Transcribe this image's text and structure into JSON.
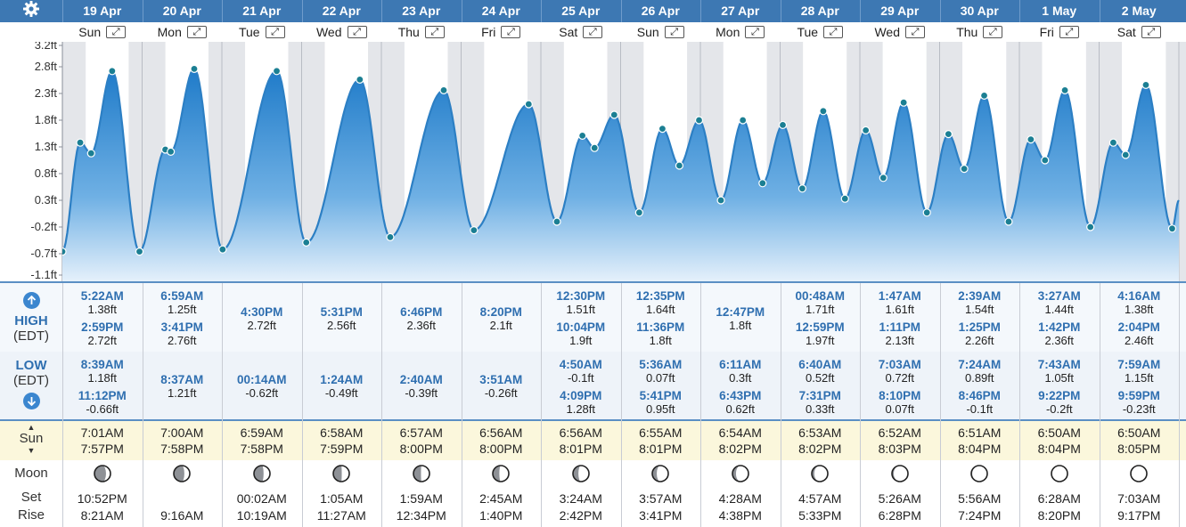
{
  "settings_icon": "gear-icon",
  "colors": {
    "header": "#3d78b3",
    "tide_line": "#2c7fc4",
    "tide_fill_top": "#2a84cf",
    "label_blue": "#2f6fb0"
  },
  "days": [
    {
      "date": "19 Apr",
      "weekday": "Sun",
      "high": [
        {
          "time": "5:22AM",
          "ht": "1.38ft"
        },
        {
          "time": "2:59PM",
          "ht": "2.72ft"
        }
      ],
      "low": [
        {
          "time": "8:39AM",
          "ht": "1.18ft"
        },
        {
          "time": "11:12PM",
          "ht": "-0.66ft"
        }
      ],
      "sunrise": "7:01AM",
      "sunset": "7:57PM",
      "moonset": "10:52PM",
      "moonrise": "8:21AM"
    },
    {
      "date": "20 Apr",
      "weekday": "Mon",
      "high": [
        {
          "time": "6:59AM",
          "ht": "1.25ft"
        },
        {
          "time": "3:41PM",
          "ht": "2.76ft"
        }
      ],
      "low": [
        {
          "time": "8:37AM",
          "ht": "1.21ft"
        }
      ],
      "sunrise": "7:00AM",
      "sunset": "7:58PM",
      "moonset": "",
      "moonrise": "9:16AM"
    },
    {
      "date": "21 Apr",
      "weekday": "Tue",
      "high": [
        {
          "time": "4:30PM",
          "ht": "2.72ft"
        }
      ],
      "low": [
        {
          "time": "00:14AM",
          "ht": "-0.62ft"
        }
      ],
      "sunrise": "6:59AM",
      "sunset": "7:58PM",
      "moonset": "00:02AM",
      "moonrise": "10:19AM"
    },
    {
      "date": "22 Apr",
      "weekday": "Wed",
      "high": [
        {
          "time": "5:31PM",
          "ht": "2.56ft"
        }
      ],
      "low": [
        {
          "time": "1:24AM",
          "ht": "-0.49ft"
        }
      ],
      "sunrise": "6:58AM",
      "sunset": "7:59PM",
      "moonset": "1:05AM",
      "moonrise": "11:27AM"
    },
    {
      "date": "23 Apr",
      "weekday": "Thu",
      "high": [
        {
          "time": "6:46PM",
          "ht": "2.36ft"
        }
      ],
      "low": [
        {
          "time": "2:40AM",
          "ht": "-0.39ft"
        }
      ],
      "sunrise": "6:57AM",
      "sunset": "8:00PM",
      "moonset": "1:59AM",
      "moonrise": "12:34PM"
    },
    {
      "date": "24 Apr",
      "weekday": "Fri",
      "high": [
        {
          "time": "8:20PM",
          "ht": "2.1ft"
        }
      ],
      "low": [
        {
          "time": "3:51AM",
          "ht": "-0.26ft"
        }
      ],
      "sunrise": "6:56AM",
      "sunset": "8:00PM",
      "moonset": "2:45AM",
      "moonrise": "1:40PM"
    },
    {
      "date": "25 Apr",
      "weekday": "Sat",
      "high": [
        {
          "time": "12:30PM",
          "ht": "1.51ft"
        },
        {
          "time": "10:04PM",
          "ht": "1.9ft"
        }
      ],
      "low": [
        {
          "time": "4:50AM",
          "ht": "-0.1ft"
        },
        {
          "time": "4:09PM",
          "ht": "1.28ft"
        }
      ],
      "sunrise": "6:56AM",
      "sunset": "8:01PM",
      "moonset": "3:24AM",
      "moonrise": "2:42PM"
    },
    {
      "date": "26 Apr",
      "weekday": "Sun",
      "high": [
        {
          "time": "12:35PM",
          "ht": "1.64ft"
        },
        {
          "time": "11:36PM",
          "ht": "1.8ft"
        }
      ],
      "low": [
        {
          "time": "5:36AM",
          "ht": "0.07ft"
        },
        {
          "time": "5:41PM",
          "ht": "0.95ft"
        }
      ],
      "sunrise": "6:55AM",
      "sunset": "8:01PM",
      "moonset": "3:57AM",
      "moonrise": "3:41PM"
    },
    {
      "date": "27 Apr",
      "weekday": "Mon",
      "high": [
        {
          "time": "12:47PM",
          "ht": "1.8ft"
        }
      ],
      "low": [
        {
          "time": "6:11AM",
          "ht": "0.3ft"
        },
        {
          "time": "6:43PM",
          "ht": "0.62ft"
        }
      ],
      "sunrise": "6:54AM",
      "sunset": "8:02PM",
      "moonset": "4:28AM",
      "moonrise": "4:38PM"
    },
    {
      "date": "28 Apr",
      "weekday": "Tue",
      "high": [
        {
          "time": "00:48AM",
          "ht": "1.71ft"
        },
        {
          "time": "12:59PM",
          "ht": "1.97ft"
        }
      ],
      "low": [
        {
          "time": "6:40AM",
          "ht": "0.52ft"
        },
        {
          "time": "7:31PM",
          "ht": "0.33ft"
        }
      ],
      "sunrise": "6:53AM",
      "sunset": "8:02PM",
      "moonset": "4:57AM",
      "moonrise": "5:33PM"
    },
    {
      "date": "29 Apr",
      "weekday": "Wed",
      "high": [
        {
          "time": "1:47AM",
          "ht": "1.61ft"
        },
        {
          "time": "1:11PM",
          "ht": "2.13ft"
        }
      ],
      "low": [
        {
          "time": "7:03AM",
          "ht": "0.72ft"
        },
        {
          "time": "8:10PM",
          "ht": "0.07ft"
        }
      ],
      "sunrise": "6:52AM",
      "sunset": "8:03PM",
      "moonset": "5:26AM",
      "moonrise": "6:28PM"
    },
    {
      "date": "30 Apr",
      "weekday": "Thu",
      "high": [
        {
          "time": "2:39AM",
          "ht": "1.54ft"
        },
        {
          "time": "1:25PM",
          "ht": "2.26ft"
        }
      ],
      "low": [
        {
          "time": "7:24AM",
          "ht": "0.89ft"
        },
        {
          "time": "8:46PM",
          "ht": "-0.1ft"
        }
      ],
      "sunrise": "6:51AM",
      "sunset": "8:04PM",
      "moonset": "5:56AM",
      "moonrise": "7:24PM"
    },
    {
      "date": "1 May",
      "weekday": "Fri",
      "high": [
        {
          "time": "3:27AM",
          "ht": "1.44ft"
        },
        {
          "time": "1:42PM",
          "ht": "2.36ft"
        }
      ],
      "low": [
        {
          "time": "7:43AM",
          "ht": "1.05ft"
        },
        {
          "time": "9:22PM",
          "ht": "-0.2ft"
        }
      ],
      "sunrise": "6:50AM",
      "sunset": "8:04PM",
      "moonset": "6:28AM",
      "moonrise": "8:20PM"
    },
    {
      "date": "2 May",
      "weekday": "Sat",
      "high": [
        {
          "time": "4:16AM",
          "ht": "1.38ft"
        },
        {
          "time": "2:04PM",
          "ht": "2.46ft"
        }
      ],
      "low": [
        {
          "time": "7:59AM",
          "ht": "1.15ft"
        },
        {
          "time": "9:59PM",
          "ht": "-0.23ft"
        }
      ],
      "sunrise": "6:50AM",
      "sunset": "8:05PM",
      "moonset": "7:03AM",
      "moonrise": "9:17PM"
    }
  ],
  "row_labels": {
    "high": "HIGH",
    "high_tz": "(EDT)",
    "low": "LOW",
    "low_tz": "(EDT)",
    "sun": "Sun",
    "moon": "Moon",
    "set": "Set",
    "rise": "Rise"
  },
  "moon_phases": [
    0.72,
    0.66,
    0.6,
    0.53,
    0.47,
    0.41,
    0.34,
    0.28,
    0.22,
    0.16,
    0.11,
    0.06,
    0.03,
    0.01
  ],
  "chart_data": {
    "type": "area",
    "y_ticks": [
      "3.2ft",
      "2.8ft",
      "2.3ft",
      "1.8ft",
      "1.3ft",
      "0.8ft",
      "0.3ft",
      "-0.2ft",
      "-0.7ft",
      "-1.1ft"
    ],
    "ylim": [
      -1.1,
      3.2
    ],
    "x_unit": "hours since 00:00 on 19 Apr",
    "extremes": [
      [
        0,
        -0.66
      ],
      [
        5.37,
        1.38
      ],
      [
        8.65,
        1.18
      ],
      [
        14.98,
        2.72
      ],
      [
        23.2,
        -0.66
      ],
      [
        30.98,
        1.25
      ],
      [
        32.62,
        1.21
      ],
      [
        39.68,
        2.76
      ],
      [
        48.23,
        -0.62
      ],
      [
        64.5,
        2.72
      ],
      [
        73.4,
        -0.49
      ],
      [
        89.52,
        2.56
      ],
      [
        98.67,
        -0.39
      ],
      [
        114.77,
        2.36
      ],
      [
        123.85,
        -0.26
      ],
      [
        140.33,
        2.1
      ],
      [
        148.83,
        -0.1
      ],
      [
        156.5,
        1.51
      ],
      [
        160.15,
        1.28
      ],
      [
        166.07,
        1.9
      ],
      [
        173.6,
        0.07
      ],
      [
        180.58,
        1.64
      ],
      [
        185.68,
        0.95
      ],
      [
        191.6,
        1.8
      ],
      [
        198.18,
        0.3
      ],
      [
        204.78,
        1.8
      ],
      [
        210.72,
        0.62
      ],
      [
        216.8,
        1.71
      ],
      [
        222.67,
        0.52
      ],
      [
        228.98,
        1.97
      ],
      [
        235.52,
        0.33
      ],
      [
        241.78,
        1.61
      ],
      [
        247.05,
        0.72
      ],
      [
        253.18,
        2.13
      ],
      [
        260.17,
        0.07
      ],
      [
        266.65,
        1.54
      ],
      [
        271.4,
        0.89
      ],
      [
        277.42,
        2.26
      ],
      [
        284.77,
        -0.1
      ],
      [
        291.45,
        1.44
      ],
      [
        295.72,
        1.05
      ],
      [
        301.7,
        2.36
      ],
      [
        309.37,
        -0.2
      ],
      [
        316.27,
        1.38
      ],
      [
        319.98,
        1.15
      ],
      [
        326.07,
        2.46
      ],
      [
        333.98,
        -0.23
      ],
      [
        336,
        0.3
      ]
    ],
    "night_bands": [
      [
        -5,
        7.02
      ],
      [
        19.95,
        31.0
      ],
      [
        43.97,
        54.98
      ],
      [
        67.97,
        78.97
      ],
      [
        91.98,
        102.95
      ],
      [
        115.98,
        126.93
      ],
      [
        139.98,
        150.93
      ],
      [
        163.98,
        174.92
      ],
      [
        188.0,
        198.9
      ],
      [
        212.0,
        222.88
      ],
      [
        236.03,
        246.87
      ],
      [
        260.03,
        270.85
      ],
      [
        284.05,
        294.83
      ],
      [
        308.07,
        318.83
      ],
      [
        332.08,
        344
      ]
    ]
  }
}
